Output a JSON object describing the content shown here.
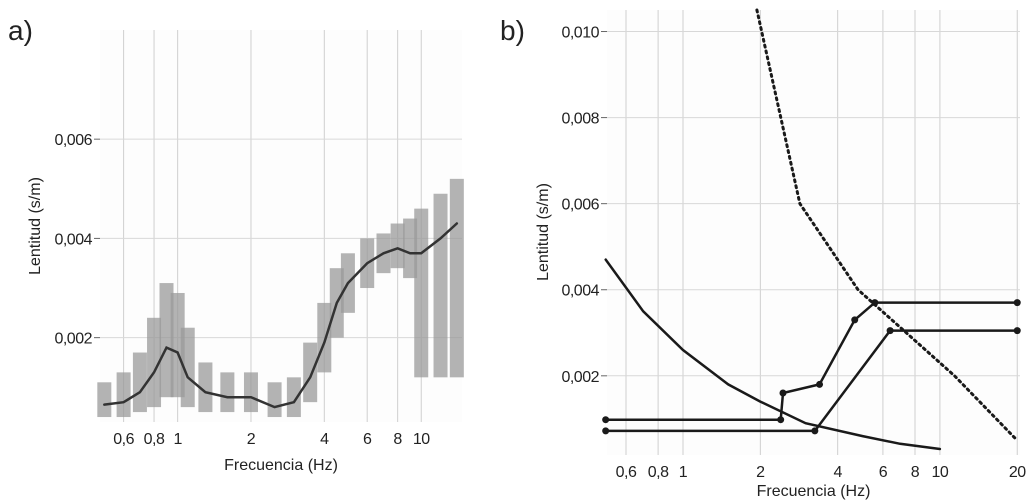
{
  "chart_data": [
    {
      "type": "line",
      "panel_label": "a)",
      "xlabel": "Frecuencia (Hz)",
      "ylabel": "Lentitud (s/m)",
      "xscale": "log",
      "grid": true,
      "xlim": [
        0.48,
        14.7
      ],
      "ylim": [
        0.0003,
        0.0082
      ],
      "xticks": [
        {
          "value": 0.6,
          "label": "0,6"
        },
        {
          "value": 0.8,
          "label": "0,8"
        },
        1,
        2,
        4,
        6,
        8,
        10
      ],
      "yticks": [
        {
          "value": 0.002,
          "label": "0,002"
        },
        {
          "value": 0.004,
          "label": "0,004"
        },
        {
          "value": 0.006,
          "label": "0,006"
        }
      ],
      "series": [
        {
          "color": "#333333",
          "style": "solid",
          "errorbars": true,
          "x": [
            0.5,
            0.6,
            0.7,
            0.8,
            0.9,
            1.0,
            1.1,
            1.3,
            1.6,
            2.0,
            2.5,
            3.0,
            3.5,
            4.0,
            4.5,
            5,
            6,
            7,
            8,
            9,
            10,
            12,
            14
          ],
          "values": [
            0.00065,
            0.0007,
            0.0009,
            0.0013,
            0.0018,
            0.0017,
            0.0012,
            0.0009,
            0.0008,
            0.0008,
            0.0006,
            0.0007,
            0.0012,
            0.0019,
            0.0027,
            0.0031,
            0.0035,
            0.0037,
            0.0038,
            0.0037,
            0.0037,
            0.004,
            0.0043
          ],
          "lower": [
            0.0004,
            0.0004,
            0.0005,
            0.0006,
            0.0008,
            0.0008,
            0.0006,
            0.0005,
            0.0005,
            0.0005,
            0.0004,
            0.0004,
            0.0007,
            0.0013,
            0.002,
            0.0025,
            0.003,
            0.0033,
            0.0034,
            0.0032,
            0.0012,
            0.0012,
            0.0012
          ],
          "upper": [
            0.0011,
            0.0013,
            0.0017,
            0.0024,
            0.0031,
            0.0029,
            0.0022,
            0.0015,
            0.0013,
            0.0013,
            0.0011,
            0.0012,
            0.0019,
            0.0027,
            0.0034,
            0.0037,
            0.004,
            0.0041,
            0.0043,
            0.0044,
            0.0046,
            0.0049,
            0.0052
          ]
        }
      ]
    },
    {
      "type": "line",
      "panel_label": "b)",
      "xlabel": "Frecuencia (Hz)",
      "ylabel": "Lentitud (s/m)",
      "xscale": "log",
      "grid": true,
      "xlim": [
        0.506,
        20.5
      ],
      "ylim": [
        0.00016,
        0.0105
      ],
      "xticks": [
        {
          "value": 0.6,
          "label": "0,6"
        },
        {
          "value": 0.8,
          "label": "0,8"
        },
        1,
        2,
        4,
        6,
        8,
        10,
        20
      ],
      "yticks": [
        {
          "value": 0.002,
          "label": "0,002"
        },
        {
          "value": 0.004,
          "label": "0,004"
        },
        {
          "value": 0.006,
          "label": "0,006"
        },
        {
          "value": 0.008,
          "label": "0,008"
        },
        {
          "value": 0.01,
          "label": "0,010"
        }
      ],
      "series": [
        {
          "color": "#1a1a1a",
          "style": "solid",
          "x": [
            0.5,
            0.7,
            1,
            1.5,
            2,
            3,
            5,
            7,
            10
          ],
          "values": [
            0.0047,
            0.0035,
            0.0026,
            0.0018,
            0.0014,
            0.0009,
            0.0006,
            0.00042,
            0.0003
          ]
        },
        {
          "color": "#1a1a1a",
          "style": "dotted",
          "x": [
            1.94,
            2.85,
            4.8,
            11.4,
            20
          ],
          "values": [
            0.0105,
            0.006,
            0.004,
            0.002,
            0.0005
          ]
        },
        {
          "color": "#1a1a1a",
          "style": "solid",
          "markers": true,
          "x": [
            0.5,
            2.4,
            2.45,
            3.4,
            4.66,
            5.58,
            20
          ],
          "values": [
            0.00098,
            0.00098,
            0.0016,
            0.0018,
            0.0033,
            0.0037,
            0.0037
          ]
        },
        {
          "color": "#1a1a1a",
          "style": "solid",
          "markers": true,
          "x": [
            0.5,
            3.26,
            6.4,
            20
          ],
          "values": [
            0.00072,
            0.00072,
            0.00305,
            0.00305
          ]
        }
      ]
    }
  ]
}
